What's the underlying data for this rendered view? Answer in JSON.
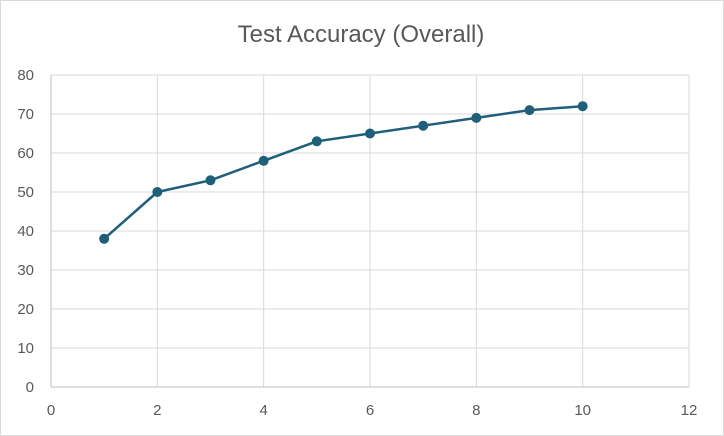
{
  "chart_data": {
    "type": "scatter",
    "title": "Test Accuracy (Overall)",
    "xlabel": "",
    "ylabel": "",
    "xlim": [
      0,
      12
    ],
    "ylim": [
      0,
      80
    ],
    "x_ticks": [
      "0",
      "2",
      "4",
      "6",
      "8",
      "10",
      "12"
    ],
    "y_ticks": [
      "0",
      "10",
      "20",
      "30",
      "40",
      "50",
      "60",
      "70",
      "80"
    ],
    "grid": true,
    "legend": "none",
    "line_color": "#1f5f7a",
    "series": [
      {
        "x": [
          1,
          2,
          3,
          4,
          5,
          6,
          7,
          8,
          9,
          10
        ],
        "y": [
          38,
          50,
          53,
          58,
          63,
          65,
          67,
          69,
          71,
          72
        ]
      }
    ]
  }
}
